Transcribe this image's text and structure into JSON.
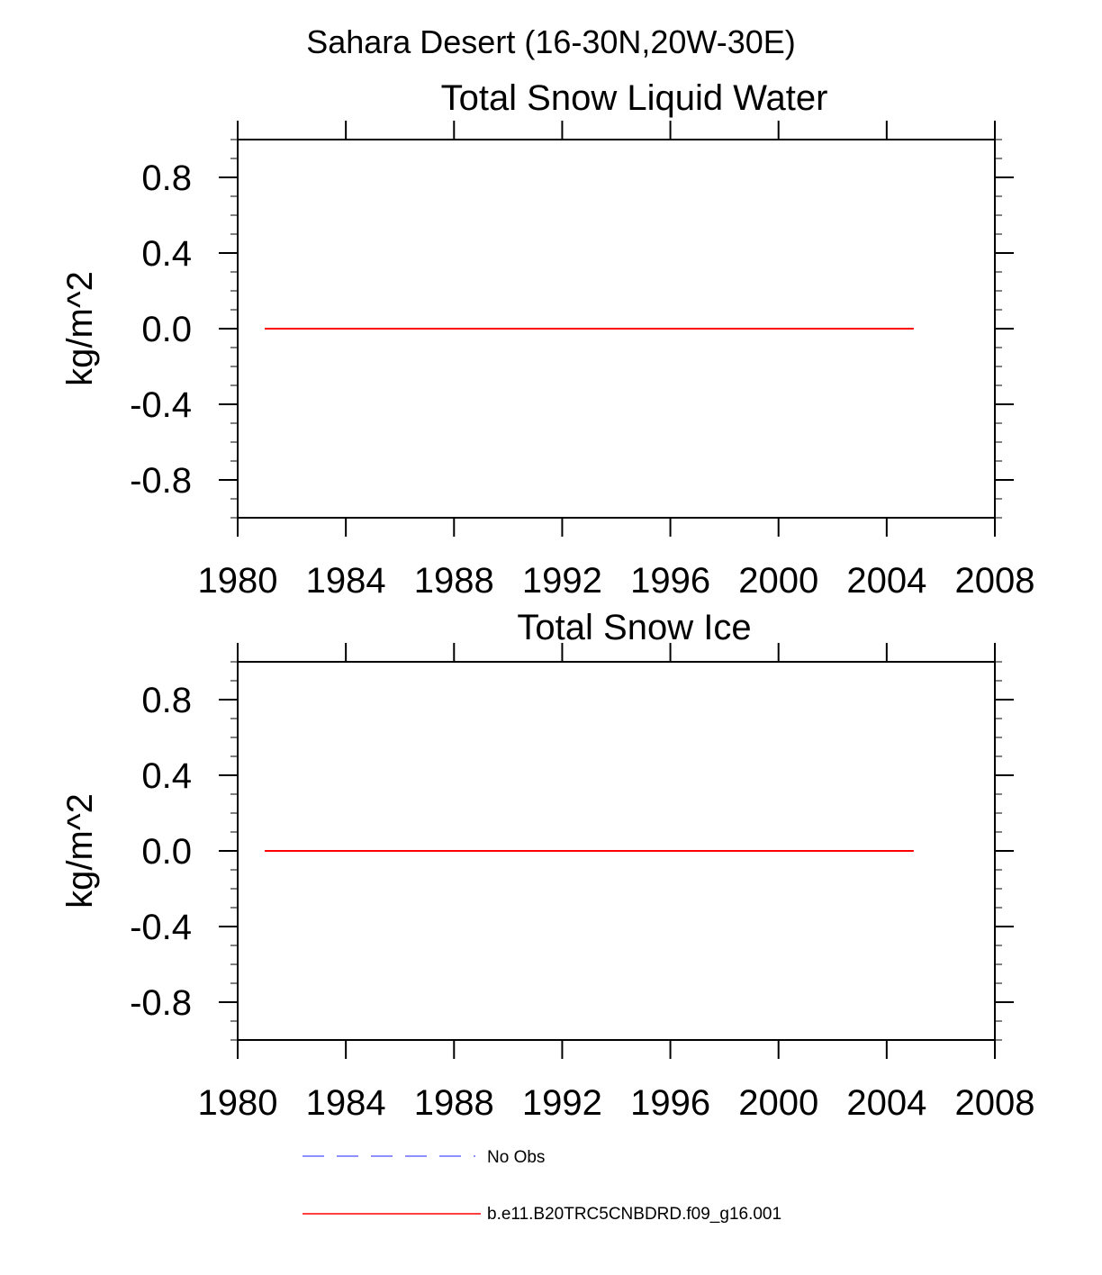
{
  "figure": {
    "suptitle": "Sahara Desert (16-30N,20W-30E)"
  },
  "legend": {
    "items": [
      {
        "label": "No Obs",
        "color": "#6a6aff",
        "style": "dashed"
      },
      {
        "label": "b.e11.B20TRC5CNBDRD.f09_g16.001",
        "color": "#ff0000",
        "style": "solid"
      }
    ]
  },
  "chart_data": [
    {
      "type": "line",
      "title": "Total Snow Liquid Water",
      "xlabel": "",
      "ylabel": "kg/m^2",
      "xlim": [
        1980,
        2008
      ],
      "ylim": [
        -1.0,
        1.0
      ],
      "xticks": [
        1980,
        1984,
        1988,
        1992,
        1996,
        2000,
        2004,
        2008
      ],
      "yticks": [
        0.8,
        0.4,
        0.0,
        -0.4,
        -0.8
      ],
      "ytick_labels": [
        "0.8",
        "0.4",
        "0.0",
        "-0.4",
        "-0.8"
      ],
      "grid": false,
      "series": [
        {
          "name": "b.e11.B20TRC5CNBDRD.f09_g16.001",
          "color": "#ff0000",
          "x": [
            1981,
            2005
          ],
          "y": [
            0.0,
            0.0
          ]
        }
      ]
    },
    {
      "type": "line",
      "title": "Total Snow Ice",
      "xlabel": "",
      "ylabel": "kg/m^2",
      "xlim": [
        1980,
        2008
      ],
      "ylim": [
        -1.0,
        1.0
      ],
      "xticks": [
        1980,
        1984,
        1988,
        1992,
        1996,
        2000,
        2004,
        2008
      ],
      "yticks": [
        0.8,
        0.4,
        0.0,
        -0.4,
        -0.8
      ],
      "ytick_labels": [
        "0.8",
        "0.4",
        "0.0",
        "-0.4",
        "-0.8"
      ],
      "grid": false,
      "series": [
        {
          "name": "b.e11.B20TRC5CNBDRD.f09_g16.001",
          "color": "#ff0000",
          "x": [
            1981,
            2005
          ],
          "y": [
            0.0,
            0.0
          ]
        }
      ]
    }
  ]
}
